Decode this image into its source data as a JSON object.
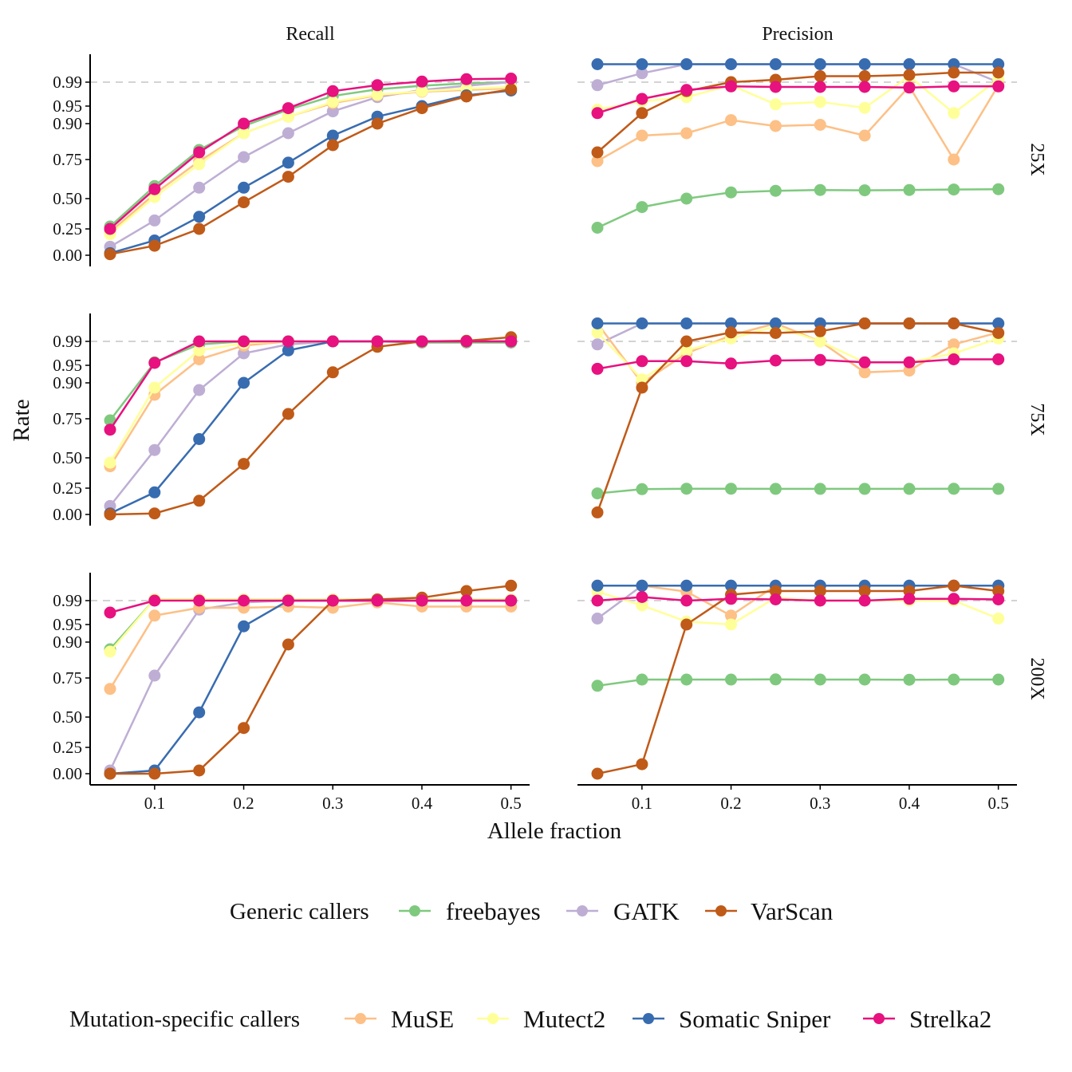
{
  "chart_data": {
    "type": "line",
    "facet_columns": [
      "Recall",
      "Precision"
    ],
    "facet_rows": [
      "25X",
      "75X",
      "200X"
    ],
    "xlabel": "Allele fraction",
    "ylabel": "Rate",
    "x": [
      0.05,
      0.1,
      0.15,
      0.2,
      0.25,
      0.3,
      0.35,
      0.4,
      0.45,
      0.5
    ],
    "x_ticks": [
      0.1,
      0.2,
      0.3,
      0.4,
      0.5
    ],
    "x_tick_labels": [
      "0.1",
      "0.2",
      "0.3",
      "0.4",
      "0.5"
    ],
    "y_ticks": [
      0.0,
      0.25,
      0.5,
      0.75,
      0.9,
      0.95,
      0.99
    ],
    "y_tick_labels": [
      "0.00",
      "0.25",
      "0.50",
      "0.75",
      "0.90",
      "0.95",
      "0.99"
    ],
    "y_scale": "stretched near 1 (nonlinear)",
    "reference_line": {
      "y": 0.99,
      "style": "dashed",
      "color": "#d3d3d3"
    },
    "callers": {
      "freebayes": "#7fc97f",
      "GATK": "#beaed4",
      "VarScan": "#c05a18",
      "MuSE": "#fdc086",
      "Mutect2": "#ffff99",
      "Somatic Sniper": "#386cb0",
      "Strelka2": "#e7117f"
    },
    "legend": [
      {
        "title": "Generic callers",
        "entries": [
          "freebayes",
          "GATK",
          "VarScan"
        ]
      },
      {
        "title": "Mutation-specific callers",
        "entries": [
          "MuSE",
          "Mutect2",
          "Somatic Sniper",
          "Strelka2"
        ]
      }
    ],
    "legend_position": "bottom",
    "series_order": [
      "freebayes",
      "GATK",
      "MuSE",
      "Mutect2",
      "Somatic Sniper",
      "VarScan",
      "Strelka2"
    ],
    "panels": [
      {
        "row": "25X",
        "col": "Recall",
        "series": [
          {
            "name": "freebayes",
            "values": [
              0.27,
              0.58,
              0.79,
              0.89,
              0.94,
              0.967,
              0.978,
              0.984,
              0.988,
              0.99
            ]
          },
          {
            "name": "GATK",
            "values": [
              0.08,
              0.32,
              0.57,
              0.76,
              0.86,
              0.935,
              0.965,
              0.977,
              0.984,
              0.99
            ]
          },
          {
            "name": "MuSE",
            "values": [
              0.22,
              0.53,
              0.74,
              0.86,
              0.92,
              0.955,
              0.968,
              0.974,
              0.977,
              0.98
            ]
          },
          {
            "name": "Mutect2",
            "values": [
              0.2,
              0.51,
              0.72,
              0.86,
              0.92,
              0.957,
              0.969,
              0.975,
              0.979,
              0.982
            ]
          },
          {
            "name": "Somatic Sniper",
            "values": [
              0.02,
              0.14,
              0.35,
              0.57,
              0.73,
              0.85,
              0.92,
              0.95,
              0.968,
              0.976
            ]
          },
          {
            "name": "VarScan",
            "values": [
              0.01,
              0.09,
              0.25,
              0.47,
              0.64,
              0.81,
              0.9,
              0.944,
              0.966,
              0.978
            ]
          },
          {
            "name": "Strelka2",
            "values": [
              0.25,
              0.56,
              0.78,
              0.9,
              0.944,
              0.975,
              0.985,
              0.991,
              0.995,
              0.996
            ]
          }
        ]
      },
      {
        "row": "25X",
        "col": "Precision",
        "series": [
          {
            "name": "freebayes",
            "values": [
              0.26,
              0.43,
              0.5,
              0.54,
              0.55,
              0.555,
              0.553,
              0.555,
              0.558,
              0.56
            ]
          },
          {
            "name": "GATK",
            "values": [
              0.985,
              1.005,
              1.02,
              1.02,
              1.02,
              1.02,
              1.02,
              1.02,
              1.02,
              0.99
            ]
          },
          {
            "name": "MuSE",
            "values": [
              0.74,
              0.85,
              0.86,
              0.91,
              0.89,
              0.895,
              0.85,
              0.983,
              0.75,
              0.985
            ]
          },
          {
            "name": "Mutect2",
            "values": [
              0.94,
              0.958,
              0.965,
              0.985,
              0.953,
              0.957,
              0.945,
              1.0,
              0.93,
              0.995
            ]
          },
          {
            "name": "Somatic Sniper",
            "values": [
              1.02,
              1.02,
              1.02,
              1.02,
              1.02,
              1.02,
              1.02,
              1.02,
              1.02,
              1.02
            ]
          },
          {
            "name": "VarScan",
            "values": [
              0.78,
              0.93,
              0.975,
              0.99,
              0.994,
              1.0,
              1.0,
              1.002,
              1.006,
              1.006
            ]
          },
          {
            "name": "Strelka2",
            "values": [
              0.93,
              0.962,
              0.977,
              0.983,
              0.982,
              0.982,
              0.982,
              0.981,
              0.983,
              0.983
            ]
          }
        ]
      },
      {
        "row": "75X",
        "col": "Recall",
        "series": [
          {
            "name": "freebayes",
            "values": [
              0.74,
              0.955,
              0.985,
              0.99,
              0.99,
              0.99,
              0.99,
              0.988,
              0.988,
              0.988
            ]
          },
          {
            "name": "GATK",
            "values": [
              0.08,
              0.55,
              0.87,
              0.97,
              0.985,
              0.99,
              0.99,
              0.99,
              0.99,
              0.99
            ]
          },
          {
            "name": "MuSE",
            "values": [
              0.43,
              0.85,
              0.96,
              0.983,
              0.99,
              0.99,
              0.99,
              0.99,
              0.99,
              0.99
            ]
          },
          {
            "name": "Mutect2",
            "values": [
              0.46,
              0.88,
              0.975,
              0.987,
              0.99,
              0.99,
              0.99,
              0.99,
              0.99,
              0.99
            ]
          },
          {
            "name": "Somatic Sniper",
            "values": [
              0.01,
              0.21,
              0.62,
              0.9,
              0.975,
              0.99,
              0.99,
              0.99,
              0.99,
              0.99
            ]
          },
          {
            "name": "VarScan",
            "values": [
              0.0,
              0.01,
              0.13,
              0.45,
              0.77,
              0.93,
              0.981,
              0.99,
              0.991,
              0.997
            ]
          },
          {
            "name": "Strelka2",
            "values": [
              0.68,
              0.954,
              0.99,
              0.99,
              0.99,
              0.99,
              0.99,
              0.99,
              0.99,
              0.99
            ]
          }
        ]
      },
      {
        "row": "75X",
        "col": "Precision",
        "series": [
          {
            "name": "freebayes",
            "values": [
              0.2,
              0.24,
              0.245,
              0.245,
              0.243,
              0.243,
              0.243,
              0.243,
              0.244,
              0.243
            ]
          },
          {
            "name": "GATK",
            "values": [
              0.985,
              1.02,
              1.02,
              1.02,
              1.02,
              1.02,
              1.02,
              1.02,
              1.02,
              1.02
            ]
          },
          {
            "name": "MuSE",
            "values": [
              1.02,
              0.9,
              0.97,
              1.0,
              1.02,
              0.99,
              0.93,
              0.935,
              0.985,
              1.005
            ]
          },
          {
            "name": "Mutect2",
            "values": [
              1.005,
              0.91,
              0.975,
              0.995,
              1.015,
              0.99,
              0.955,
              0.955,
              0.97,
              0.995
            ]
          },
          {
            "name": "Somatic Sniper",
            "values": [
              1.02,
              1.02,
              1.02,
              1.02,
              1.02,
              1.02,
              1.02,
              1.02,
              1.02,
              1.02
            ]
          },
          {
            "name": "VarScan",
            "values": [
              0.02,
              0.88,
              0.99,
              1.005,
              1.004,
              1.007,
              1.02,
              1.02,
              1.02,
              1.004
            ]
          },
          {
            "name": "Strelka2",
            "values": [
              0.94,
              0.957,
              0.957,
              0.953,
              0.958,
              0.959,
              0.955,
              0.955,
              0.96,
              0.96
            ]
          }
        ]
      },
      {
        "row": "200X",
        "col": "Recall",
        "series": [
          {
            "name": "freebayes",
            "values": [
              0.87,
              0.992,
              0.992,
              0.992,
              0.992,
              0.992,
              0.992,
              0.992,
              0.992,
              0.992
            ]
          },
          {
            "name": "GATK",
            "values": [
              0.03,
              0.76,
              0.975,
              0.987,
              0.99,
              0.99,
              0.99,
              0.99,
              0.99,
              0.99
            ]
          },
          {
            "name": "MuSE",
            "values": [
              0.68,
              0.965,
              0.978,
              0.978,
              0.98,
              0.978,
              0.987,
              0.98,
              0.98,
              0.98
            ]
          },
          {
            "name": "Mutect2",
            "values": [
              0.86,
              0.992,
              0.992,
              0.992,
              0.992,
              0.992,
              0.992,
              0.992,
              0.992,
              0.992
            ]
          },
          {
            "name": "Somatic Sniper",
            "values": [
              0.0,
              0.03,
              0.53,
              0.945,
              0.99,
              0.99,
              0.99,
              0.99,
              0.99,
              0.99
            ]
          },
          {
            "name": "VarScan",
            "values": [
              0.0,
              0.0,
              0.03,
              0.41,
              0.89,
              0.99,
              0.992,
              0.995,
              1.006,
              1.015
            ]
          },
          {
            "name": "Strelka2",
            "values": [
              0.97,
              0.99,
              0.99,
              0.99,
              0.99,
              0.99,
              0.99,
              0.99,
              0.99,
              0.99
            ]
          }
        ]
      },
      {
        "row": "200X",
        "col": "Precision",
        "series": [
          {
            "name": "freebayes",
            "values": [
              0.7,
              0.74,
              0.74,
              0.74,
              0.741,
              0.74,
              0.74,
              0.739,
              0.74,
              0.74
            ]
          },
          {
            "name": "GATK",
            "values": [
              0.96,
              1.015,
              1.015,
              1.015,
              1.015,
              1.015,
              1.015,
              1.015,
              1.015,
              1.015
            ]
          },
          {
            "name": "MuSE",
            "values": [
              1.015,
              1.015,
              1.005,
              0.965,
              1.015,
              1.015,
              1.015,
              1.015,
              1.015,
              1.015
            ]
          },
          {
            "name": "Mutect2",
            "values": [
              1.005,
              0.982,
              0.955,
              0.95,
              0.995,
              0.99,
              0.99,
              0.99,
              0.99,
              0.96
            ]
          },
          {
            "name": "Somatic Sniper",
            "values": [
              1.015,
              1.015,
              1.015,
              1.015,
              1.015,
              1.015,
              1.015,
              1.015,
              1.015,
              1.015
            ]
          },
          {
            "name": "VarScan",
            "values": [
              0.0,
              0.09,
              0.95,
              1.0,
              1.006,
              1.006,
              1.006,
              1.006,
              1.015,
              1.006
            ]
          },
          {
            "name": "Strelka2",
            "values": [
              0.99,
              0.996,
              0.99,
              0.993,
              0.992,
              0.99,
              0.99,
              0.993,
              0.993,
              0.992
            ]
          }
        ]
      }
    ]
  }
}
